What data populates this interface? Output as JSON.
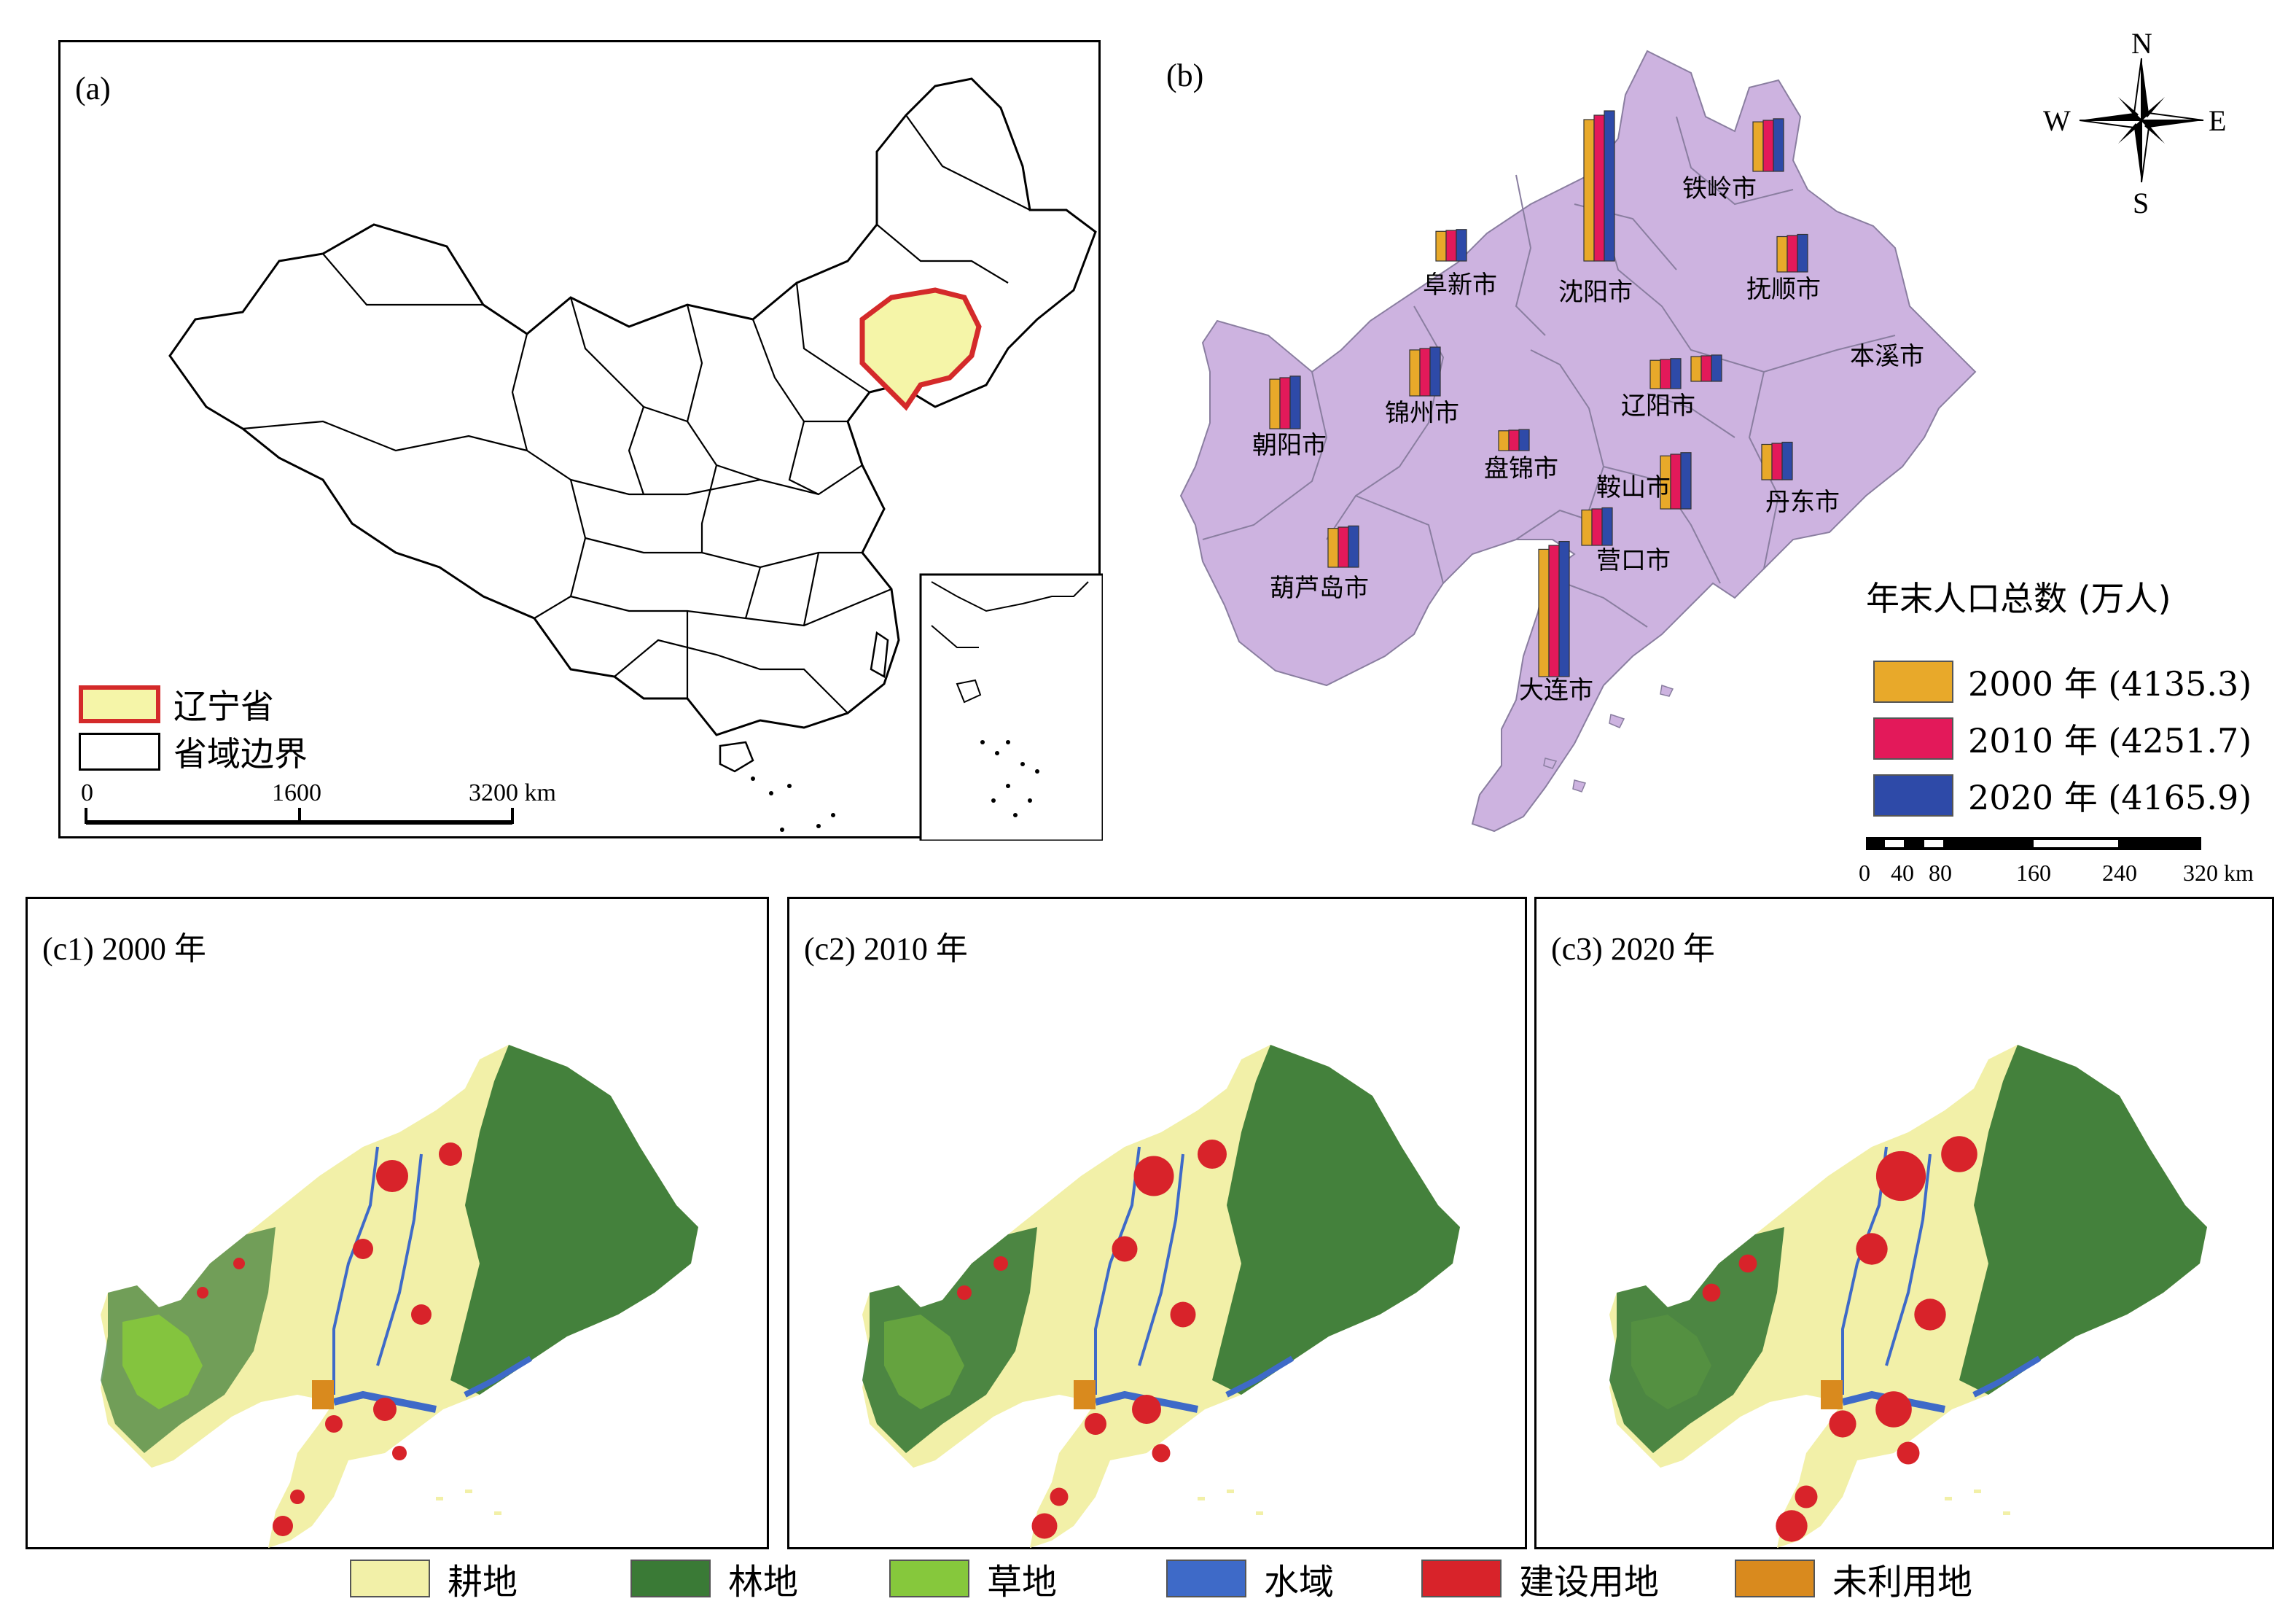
{
  "panel_a": {
    "label": "(a)",
    "legend": [
      {
        "text": "辽宁省",
        "fill": "#f5f5a8",
        "stroke": "#d42a2a"
      },
      {
        "text": "省域边界",
        "fill": "#ffffff",
        "stroke": "#000000"
      }
    ],
    "scale_ticks": [
      "0",
      "1600",
      "3200 km"
    ]
  },
  "panel_b": {
    "label": "(b)",
    "compass": {
      "n": "N",
      "s": "S",
      "e": "E",
      "w": "W"
    },
    "cities": [
      "铁岭市",
      "阜新市",
      "沈阳市",
      "抚顺市",
      "本溪市",
      "朝阳市",
      "锦州市",
      "辽阳市",
      "盘锦市",
      "鞍山市",
      "丹东市",
      "营口市",
      "葫芦岛市",
      "大连市"
    ],
    "legend_title": "年末人口总数 (万人)",
    "legend": [
      {
        "text": "2000 年 (4135.3)",
        "color": "#e8a92a"
      },
      {
        "text": "2010 年 (4251.7)",
        "color": "#e3195a"
      },
      {
        "text": "2020 年 (4165.9)",
        "color": "#2e4aa8"
      }
    ],
    "scale_ticks": [
      "0",
      "40",
      "80",
      "160",
      "240",
      "320 km"
    ],
    "land_color": "#cdb3e0"
  },
  "panels_c": [
    {
      "label": "(c1) 2000 年"
    },
    {
      "label": "(c2) 2010 年"
    },
    {
      "label": "(c3) 2020 年"
    }
  ],
  "landuse_legend": [
    {
      "text": "耕地",
      "color": "#f2f0a8"
    },
    {
      "text": "林地",
      "color": "#3a7a36"
    },
    {
      "text": "草地",
      "color": "#86c83c"
    },
    {
      "text": "水域",
      "color": "#3e6ac8"
    },
    {
      "text": "建设用地",
      "color": "#d8232a"
    },
    {
      "text": "未利用地",
      "color": "#d98a1e"
    }
  ]
}
